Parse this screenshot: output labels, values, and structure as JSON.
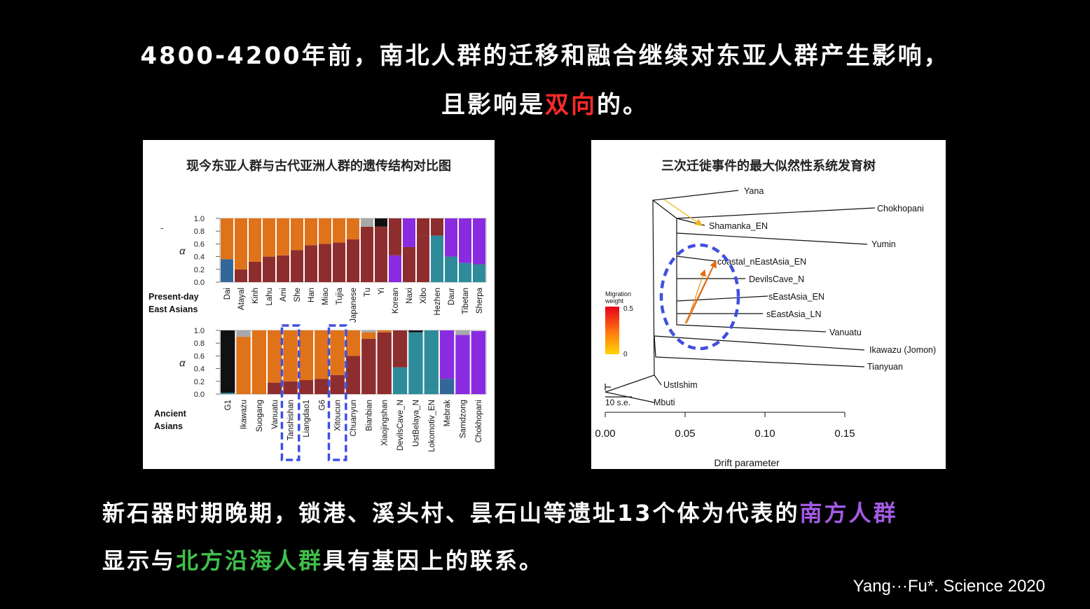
{
  "headline": {
    "line1": "4800-4200年前，南北人群的迁移和融合继续对东亚人群产生影响，",
    "line2_pre": "且影响是",
    "line2_highlight": "双向",
    "line2_post": "的。"
  },
  "left_panel": {
    "title": "现今东亚人群与古代亚洲人群的遗传结构对比图",
    "yticks": [
      "1.0",
      "0.8",
      "0.6",
      "0.4",
      "0.2",
      "0.0"
    ],
    "alpha": "α",
    "top_group_label": [
      "Present-day",
      "East Asians"
    ],
    "bottom_group_label": [
      "Ancient",
      "Asians"
    ],
    "colors": {
      "orange": "#e07219",
      "maroon": "#8e2d2d",
      "blue": "#336699",
      "teal": "#2e8b9a",
      "purple": "#8a2be2",
      "gray": "#a8a8a8",
      "black": "#111111"
    }
  },
  "chart_data": [
    {
      "type": "bar",
      "stacked": true,
      "group": "Present-day East Asians",
      "ylim": [
        0,
        1
      ],
      "categories": [
        "Dai",
        "Atayal",
        "Kinh",
        "Lahu",
        "Ami",
        "She",
        "Han",
        "Miao",
        "Tujia",
        "Japanese",
        "Tu",
        "Yi",
        "Korean",
        "Naxi",
        "Xibo",
        "Hezhen",
        "Daur",
        "Tibetan",
        "Sherpa"
      ],
      "series": [
        {
          "component": "blue",
          "values": [
            0.36,
            0,
            0,
            0,
            0,
            0,
            0,
            0,
            0,
            0,
            0,
            0,
            0,
            0,
            0,
            0,
            0,
            0,
            0
          ]
        },
        {
          "component": "maroon",
          "values": [
            0,
            0.2,
            0.32,
            0.4,
            0.42,
            0.5,
            0.58,
            0.6,
            0.62,
            0.67,
            0.87,
            0.87,
            0,
            0.55,
            0.73,
            0,
            0,
            0,
            0
          ]
        },
        {
          "component": "teal",
          "values": [
            0,
            0,
            0,
            0,
            0,
            0,
            0,
            0,
            0,
            0,
            0,
            0,
            0,
            0,
            0,
            0.73,
            0.4,
            0.3,
            0.28
          ]
        },
        {
          "component": "purple",
          "values": [
            0,
            0,
            0,
            0,
            0,
            0,
            0,
            0,
            0,
            0,
            0,
            0,
            0.42,
            0.45,
            0,
            0,
            0.6,
            0.7,
            0.72
          ]
        },
        {
          "component": "maroon2",
          "values": [
            0,
            0,
            0,
            0,
            0,
            0,
            0,
            0,
            0,
            0,
            0,
            0,
            0.58,
            0,
            0.27,
            0.27,
            0,
            0,
            0
          ]
        },
        {
          "component": "orange",
          "values": [
            0.64,
            0.8,
            0.68,
            0.6,
            0.58,
            0.5,
            0.42,
            0.4,
            0.38,
            0.33,
            0,
            0,
            0,
            0,
            0,
            0,
            0,
            0,
            0
          ]
        },
        {
          "component": "gray",
          "values": [
            0,
            0,
            0,
            0,
            0,
            0,
            0,
            0,
            0,
            0,
            0.13,
            0,
            0,
            0,
            0,
            0,
            0,
            0,
            0
          ]
        },
        {
          "component": "black",
          "values": [
            0,
            0,
            0,
            0,
            0,
            0,
            0,
            0,
            0,
            0,
            0,
            0.13,
            0,
            0,
            0,
            0,
            0,
            0,
            0
          ]
        }
      ]
    },
    {
      "type": "bar",
      "stacked": true,
      "group": "Ancient Asians",
      "ylim": [
        0,
        1
      ],
      "categories": [
        "G1",
        "Ikawazu",
        "Suogang",
        "Vanuatu",
        "Tanshishan",
        "Liangdao1",
        "G6",
        "Xitoucun",
        "Chuanyun",
        "Bianbian",
        "Xiaojingshan",
        "DevilsCave_N",
        "UstBelaya_N",
        "Lokomotiv_EN",
        "Mebrak",
        "Samdzong",
        "Chokhopani"
      ],
      "highlighted": [
        "Tanshishan",
        "Xitoucun"
      ],
      "series": [
        {
          "component": "teal",
          "values": [
            0.02,
            0,
            0,
            0,
            0,
            0,
            0,
            0,
            0,
            0,
            0,
            0.42,
            0.97,
            0.05,
            0,
            0,
            0
          ]
        },
        {
          "component": "maroon",
          "values": [
            0,
            0,
            0,
            0.18,
            0.2,
            0.22,
            0.24,
            0.3,
            0.6,
            0.87,
            0.97,
            0,
            0,
            0,
            0,
            0,
            0
          ]
        },
        {
          "component": "blue",
          "values": [
            0,
            0,
            0,
            0,
            0,
            0,
            0,
            0,
            0,
            0,
            0,
            0,
            0,
            0,
            0.24,
            0,
            0
          ]
        },
        {
          "component": "purple",
          "values": [
            0,
            0,
            0,
            0,
            0,
            0,
            0,
            0,
            0,
            0,
            0,
            0,
            0,
            0,
            0.76,
            0.93,
            0.99
          ]
        },
        {
          "component": "teal2",
          "values": [
            0,
            0,
            0,
            0,
            0,
            0,
            0,
            0,
            0,
            0,
            0,
            0,
            0,
            0.95,
            0,
            0,
            0
          ]
        },
        {
          "component": "maroon2",
          "values": [
            0,
            0,
            0,
            0,
            0,
            0,
            0,
            0,
            0,
            0,
            0,
            0.58,
            0,
            0,
            0,
            0,
            0
          ]
        },
        {
          "component": "orange",
          "values": [
            0,
            0.9,
            1,
            0.82,
            0.8,
            0.78,
            0.76,
            0.7,
            0.4,
            0.1,
            0.03,
            0,
            0,
            0,
            0,
            0,
            0
          ]
        },
        {
          "component": "gray",
          "values": [
            0,
            0.1,
            0,
            0,
            0,
            0,
            0,
            0,
            0,
            0.03,
            0,
            0,
            0,
            0,
            0,
            0.07,
            0
          ]
        },
        {
          "component": "black",
          "values": [
            0.98,
            0,
            0,
            0,
            0,
            0,
            0,
            0,
            0,
            0,
            0,
            0,
            0.03,
            0,
            0,
            0,
            0
          ]
        }
      ]
    },
    {
      "type": "tree",
      "title": "三次迁徙事件的最大似然性系统发育树",
      "xlabel": "Drift parameter",
      "xticks": [
        "0.00",
        "0.05",
        "0.10",
        "0.15"
      ],
      "scale_label": "10 s.e.",
      "root_label": "H",
      "legend_title": [
        "Migration",
        "weight"
      ],
      "legend_ticks": [
        "0.5",
        "0"
      ],
      "leaves": [
        "Yana",
        "Chokhopani",
        "Shamanka_EN",
        "Yumin",
        "coastal_nEastAsia_EN",
        "DevilsCave_N",
        "sEastAsia_EN",
        "sEastAsia_LN",
        "Vanuatu",
        "Ikawazu (Jomon)",
        "Tianyuan",
        "UstIshim",
        "Mbuti"
      ]
    }
  ],
  "caption": {
    "line1_pre": "新石器时期晚期，锁港、溪头村、昙石山等遗址13个体为代表的",
    "line1_highlight": "南方人群",
    "line2_pre": "显示与",
    "line2_highlight": "北方沿海人群",
    "line2_post": "具有基因上的联系。"
  },
  "citation": "Yang···Fu*. Science 2020"
}
